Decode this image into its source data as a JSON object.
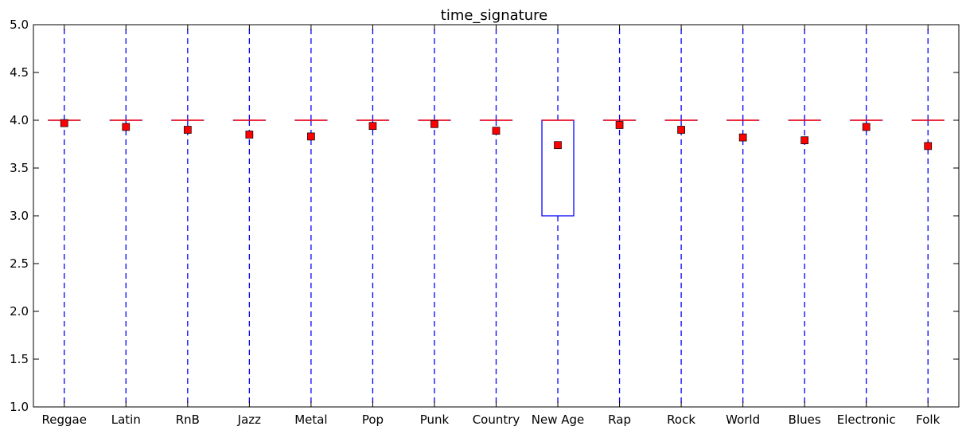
{
  "chart_data": {
    "type": "box",
    "title": "time_signature",
    "xlabel": "",
    "ylabel": "",
    "ylim": [
      1.0,
      5.0
    ],
    "yticks": [
      1.0,
      1.5,
      2.0,
      2.5,
      3.0,
      3.5,
      4.0,
      4.5,
      5.0
    ],
    "ytick_labels": [
      "1.0",
      "1.5",
      "2.0",
      "2.5",
      "3.0",
      "3.5",
      "4.0",
      "4.5",
      "5.0"
    ],
    "categories": [
      "Reggae",
      "Latin",
      "RnB",
      "Jazz",
      "Metal",
      "Pop",
      "Punk",
      "Country",
      "New Age",
      "Rap",
      "Rock",
      "World",
      "Blues",
      "Electronic",
      "Folk"
    ],
    "boxes": [
      {
        "whisker_low": 1.0,
        "q1": 4.0,
        "median": 4.0,
        "q3": 4.0,
        "whisker_high": 5.0,
        "mean": 3.97
      },
      {
        "whisker_low": 1.0,
        "q1": 4.0,
        "median": 4.0,
        "q3": 4.0,
        "whisker_high": 5.0,
        "mean": 3.93
      },
      {
        "whisker_low": 1.0,
        "q1": 4.0,
        "median": 4.0,
        "q3": 4.0,
        "whisker_high": 5.0,
        "mean": 3.9
      },
      {
        "whisker_low": 1.0,
        "q1": 4.0,
        "median": 4.0,
        "q3": 4.0,
        "whisker_high": 5.0,
        "mean": 3.85
      },
      {
        "whisker_low": 1.0,
        "q1": 4.0,
        "median": 4.0,
        "q3": 4.0,
        "whisker_high": 5.0,
        "mean": 3.83
      },
      {
        "whisker_low": 1.0,
        "q1": 4.0,
        "median": 4.0,
        "q3": 4.0,
        "whisker_high": 5.0,
        "mean": 3.94
      },
      {
        "whisker_low": 1.0,
        "q1": 4.0,
        "median": 4.0,
        "q3": 4.0,
        "whisker_high": 5.0,
        "mean": 3.96
      },
      {
        "whisker_low": 1.0,
        "q1": 4.0,
        "median": 4.0,
        "q3": 4.0,
        "whisker_high": 5.0,
        "mean": 3.89
      },
      {
        "whisker_low": 1.0,
        "q1": 3.0,
        "median": 4.0,
        "q3": 4.0,
        "whisker_high": 5.0,
        "mean": 3.74
      },
      {
        "whisker_low": 1.0,
        "q1": 4.0,
        "median": 4.0,
        "q3": 4.0,
        "whisker_high": 5.0,
        "mean": 3.95
      },
      {
        "whisker_low": 1.0,
        "q1": 4.0,
        "median": 4.0,
        "q3": 4.0,
        "whisker_high": 5.0,
        "mean": 3.9
      },
      {
        "whisker_low": 1.0,
        "q1": 4.0,
        "median": 4.0,
        "q3": 4.0,
        "whisker_high": 5.0,
        "mean": 3.82
      },
      {
        "whisker_low": 1.0,
        "q1": 4.0,
        "median": 4.0,
        "q3": 4.0,
        "whisker_high": 5.0,
        "mean": 3.79
      },
      {
        "whisker_low": 1.0,
        "q1": 4.0,
        "median": 4.0,
        "q3": 4.0,
        "whisker_high": 5.0,
        "mean": 3.93
      },
      {
        "whisker_low": 1.0,
        "q1": 4.0,
        "median": 4.0,
        "q3": 4.0,
        "whisker_high": 5.0,
        "mean": 3.73
      }
    ],
    "grid": false,
    "colors": {
      "box": "#0000ff",
      "whisker": "#0000ff",
      "median": "#ff0000",
      "mean_marker": "#ff0000",
      "mean_marker_edge": "#000000",
      "axis": "#000000"
    }
  }
}
